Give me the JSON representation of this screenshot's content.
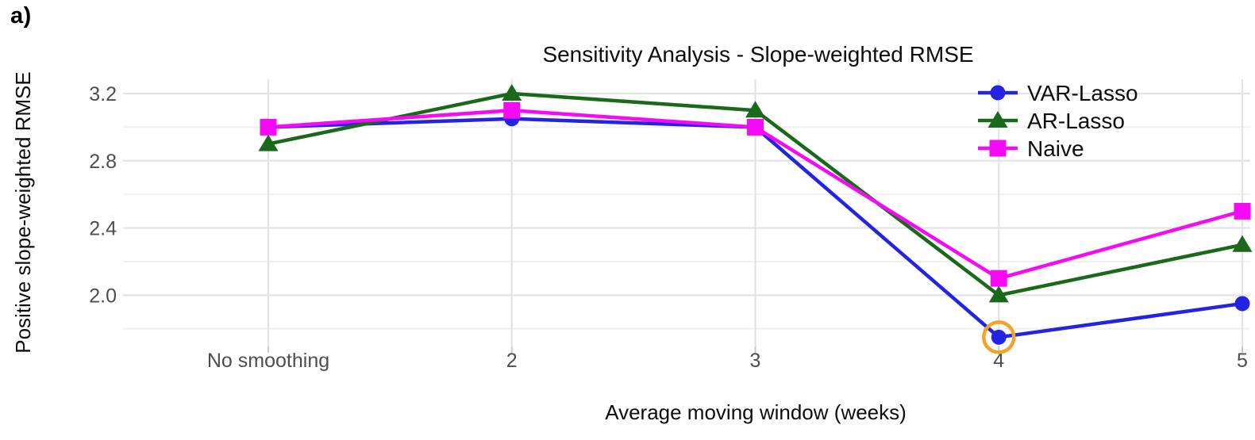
{
  "panel_label": "a)",
  "chart_data": {
    "type": "line",
    "title": "Sensitivity Analysis - Slope-weighted RMSE",
    "xlabel": "Average moving window (weeks)",
    "ylabel": "Positive slope-weighted RMSE",
    "categories": [
      "No smoothing",
      "2",
      "3",
      "4",
      "5"
    ],
    "series": [
      {
        "name": "VAR-Lasso",
        "marker": "circle",
        "color": "#2323e1",
        "values": [
          3.0,
          3.05,
          3.0,
          1.75,
          1.95
        ]
      },
      {
        "name": "AR-Lasso",
        "marker": "triangle",
        "color": "#1a691a",
        "values": [
          2.9,
          3.2,
          3.1,
          2.0,
          2.3
        ]
      },
      {
        "name": "Naive",
        "marker": "square",
        "color": "#f50af5",
        "values": [
          3.0,
          3.1,
          3.0,
          2.1,
          2.5
        ]
      }
    ],
    "yticks": [
      2.0,
      2.4,
      2.8,
      3.2
    ],
    "yticks_minor": [
      1.8,
      2.2,
      2.6,
      3.0
    ],
    "ylim": [
      1.695,
      3.285
    ],
    "grid": "horizontal major+minor, vertical at categories",
    "legend_position": "top-right-inside",
    "annotation": {
      "type": "highlight-circle",
      "series": "VAR-Lasso",
      "category": "4",
      "value": 1.75,
      "color": "#f2a329"
    },
    "colors": {
      "title_text": "#0d0d0d",
      "axis_title_text": "#0d0d0d",
      "tick_label_text": "#4d4d4d",
      "legend_text": "#0d0d0d"
    }
  }
}
